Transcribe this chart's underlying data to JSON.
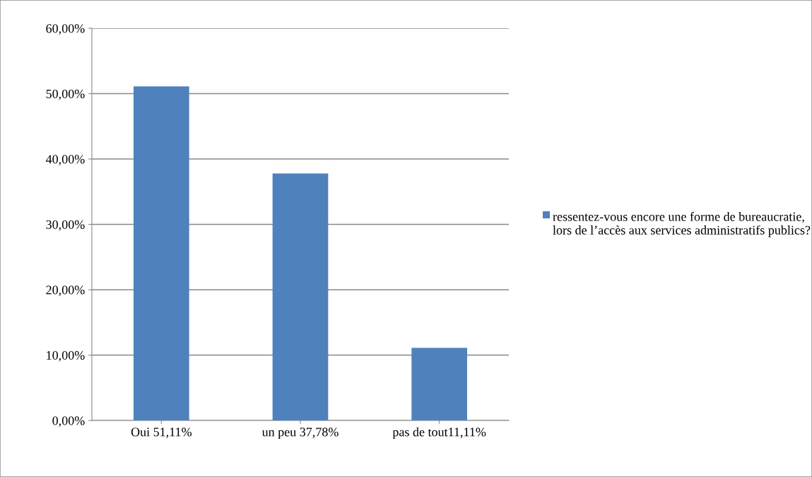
{
  "chart_data": {
    "type": "bar",
    "categories": [
      "Oui 51,11%",
      "un peu 37,78%",
      "pas de tout11,11%"
    ],
    "series": [
      {
        "name": "ressentez-vous encore une forme de bureaucratie, lors de l’accès aux services administratifs publics?",
        "color": "#4f81bd",
        "values": [
          51.11,
          37.78,
          11.11
        ]
      }
    ],
    "ylim": [
      0,
      60
    ],
    "yticks": [
      {
        "value": 0,
        "label": "0,00%"
      },
      {
        "value": 10,
        "label": "10,00%"
      },
      {
        "value": 20,
        "label": "20,00%"
      },
      {
        "value": 30,
        "label": "30,00%"
      },
      {
        "value": 40,
        "label": "40,00%"
      },
      {
        "value": 50,
        "label": "50,00%"
      },
      {
        "value": 60,
        "label": "60,00%"
      }
    ],
    "grid": "y",
    "legend": "right"
  }
}
